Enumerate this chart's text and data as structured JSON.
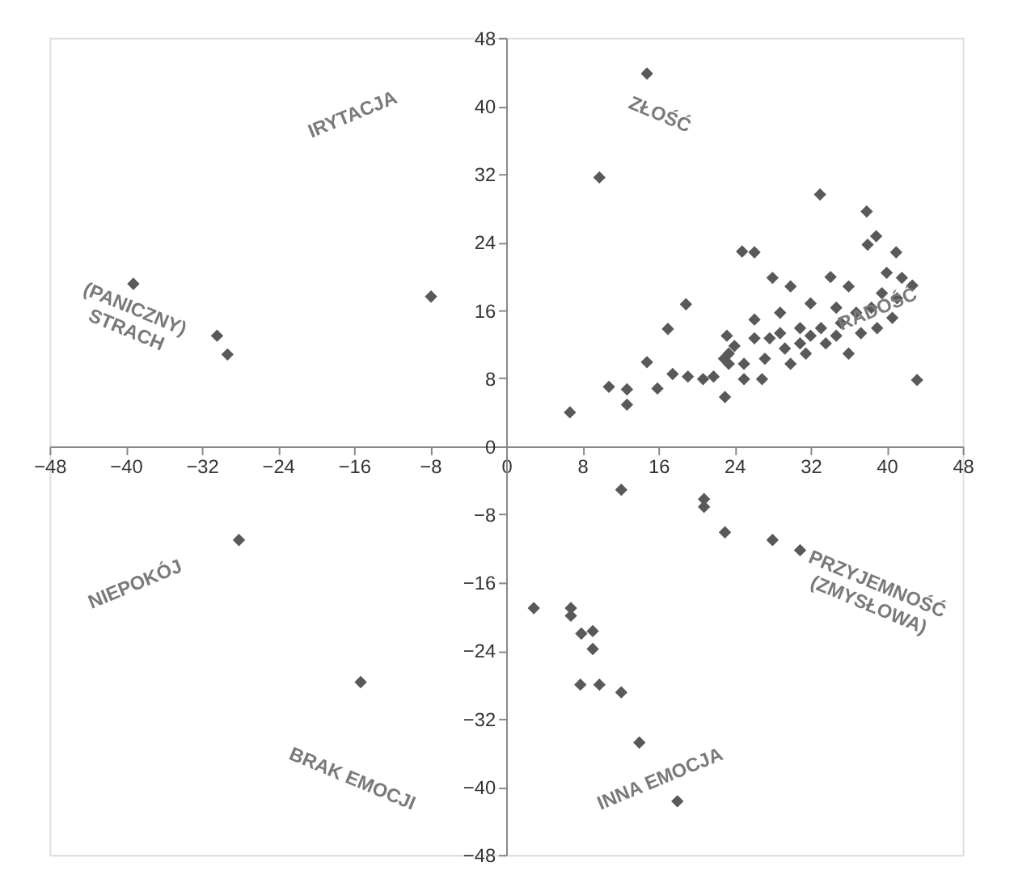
{
  "chart_data": {
    "type": "scatter",
    "marker": "diamond",
    "grid": false,
    "xlim": [
      -48,
      48
    ],
    "ylim": [
      -48,
      48
    ],
    "xticks": [
      -48,
      -40,
      -32,
      -24,
      -16,
      -8,
      0,
      8,
      16,
      24,
      32,
      40,
      48
    ],
    "yticks": [
      -48,
      -40,
      -32,
      -24,
      -16,
      -8,
      0,
      8,
      16,
      24,
      32,
      40,
      48
    ],
    "annotations": [
      "ZŁOŚĆ",
      "RADOŚĆ",
      "PRZYJEMNOŚĆ (ZMYSŁOWA)",
      "INNA EMOCJA",
      "BRAK EMOCJI",
      "NIEPOKÓJ",
      "(PANICZNY) STRACH",
      "IRYTACJA"
    ],
    "series": [
      {
        "color": "#595959",
        "x": [
          -7.9,
          -39.2,
          -30.4,
          -29.3,
          -28.1,
          14.8,
          9.8,
          33.0,
          37.9,
          38.9,
          38.0,
          41.0,
          24.8,
          26.1,
          28.0,
          29.9,
          34.1,
          36.0,
          40.0,
          41.6,
          42.7,
          39.5,
          41.1,
          18.9,
          32.0,
          34.7,
          36.8,
          38.4,
          17.0,
          26.1,
          28.8,
          28.8,
          30.9,
          33.1,
          35.2,
          23.2,
          24.0,
          23.4,
          26.1,
          27.7,
          30.9,
          32.0,
          34.7,
          37.3,
          39.0,
          40.6,
          14.8,
          17.5,
          19.1,
          20.7,
          21.8,
          22.9,
          23.4,
          25.0,
          27.2,
          29.3,
          29.9,
          31.5,
          33.6,
          36.0,
          43.2,
          25.0,
          26.9,
          23.0,
          15.9,
          12.7,
          10.8,
          12.7,
          6.7,
          12.1,
          20.8,
          20.8,
          23.0,
          28.0,
          30.9,
          2.9,
          6.8,
          6.8,
          7.9,
          9.1,
          9.1,
          7.8,
          9.8,
          12.1,
          14.0,
          18.0,
          -15.3
        ],
        "values": [
          17.6,
          19.1,
          13.0,
          10.8,
          -11.0,
          43.8,
          31.6,
          29.6,
          27.6,
          24.7,
          23.7,
          22.8,
          22.9,
          22.8,
          19.8,
          18.8,
          19.9,
          18.8,
          20.4,
          19.8,
          18.9,
          18.0,
          17.4,
          16.7,
          16.8,
          16.3,
          15.7,
          16.3,
          13.8,
          14.9,
          15.7,
          13.3,
          13.9,
          13.9,
          14.5,
          13.0,
          11.8,
          10.9,
          12.7,
          12.7,
          12.1,
          13.0,
          13.0,
          13.3,
          13.9,
          15.1,
          9.9,
          8.5,
          8.2,
          7.9,
          8.2,
          10.3,
          9.7,
          9.7,
          10.3,
          11.5,
          9.7,
          10.9,
          12.1,
          10.9,
          7.8,
          7.9,
          7.9,
          5.8,
          6.8,
          6.7,
          7.0,
          4.9,
          4.0,
          -5.1,
          -6.2,
          -7.1,
          -10.1,
          -11.0,
          -12.2,
          -19.0,
          -19.0,
          -19.9,
          -22.0,
          -21.7,
          -23.8,
          -28.0,
          -28.0,
          -28.9,
          -34.8,
          -41.7,
          -27.7
        ]
      }
    ]
  }
}
